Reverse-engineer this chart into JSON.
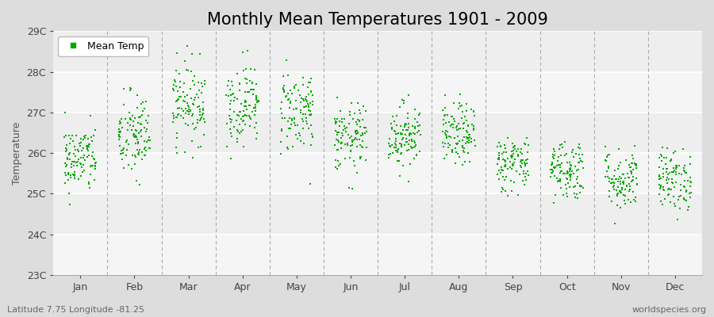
{
  "title": "Monthly Mean Temperatures 1901 - 2009",
  "ylabel": "Temperature",
  "subtitle_left": "Latitude 7.75 Longitude -81.25",
  "subtitle_right": "worldspecies.org",
  "months": [
    "Jan",
    "Feb",
    "Mar",
    "Apr",
    "May",
    "Jun",
    "Jul",
    "Aug",
    "Sep",
    "Oct",
    "Nov",
    "Dec"
  ],
  "ylim": [
    23,
    29
  ],
  "yticks": [
    23,
    24,
    25,
    26,
    27,
    28,
    29
  ],
  "ytick_labels": [
    "23C",
    "24C",
    "25C",
    "26C",
    "27C",
    "28C",
    "29C"
  ],
  "dot_color": "#00AA00",
  "bg_color": "#DDDDDD",
  "plot_bg": "#EEEEEE",
  "grid_color": "#FFFFFF",
  "vline_color": "#999999",
  "n_years": 109,
  "seed": 42,
  "month_means": [
    25.85,
    26.4,
    27.25,
    27.2,
    27.05,
    26.35,
    26.45,
    26.45,
    25.75,
    25.6,
    25.35,
    25.35
  ],
  "month_stds": [
    0.42,
    0.55,
    0.5,
    0.5,
    0.52,
    0.42,
    0.4,
    0.38,
    0.35,
    0.38,
    0.38,
    0.38
  ],
  "title_fontsize": 15,
  "axis_label_fontsize": 9,
  "tick_fontsize": 9,
  "legend_fontsize": 9,
  "marker_size": 3
}
